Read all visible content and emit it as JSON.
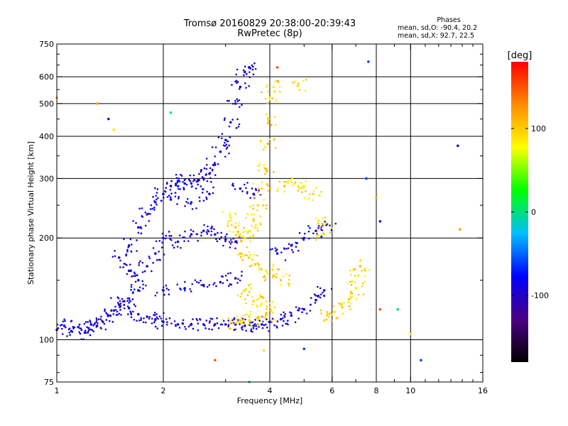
{
  "header": {
    "title_line1": "Tromsø 20160829 20:38:00-20:39:43",
    "title_line2": "RwPretec (8p)",
    "stats_heading": "Phases",
    "stats_o": "mean, sd,O: -90.4, 20.2",
    "stats_x": "mean, sd,X:  92.7, 22.5"
  },
  "chart_data": {
    "type": "scatter",
    "xlabel": "Frequency [MHz]",
    "ylabel": "Stationary phase Virtual Height [km]",
    "x_scale": "log",
    "y_scale": "log",
    "xlim": [
      1,
      16
    ],
    "ylim": [
      75,
      750
    ],
    "x_ticks": [
      1,
      2,
      4,
      6,
      8,
      10,
      16
    ],
    "x_minor_ticks": [
      3,
      5,
      7,
      9,
      11,
      12,
      13,
      14,
      15
    ],
    "y_ticks": [
      75,
      100,
      200,
      300,
      400,
      500,
      600,
      750
    ],
    "y_minor_ticks": [
      80,
      90,
      150,
      250,
      350,
      450,
      550,
      650,
      700
    ],
    "grid": true,
    "colorbar": {
      "label": "[deg]",
      "min": -180,
      "max": 180,
      "ticks": [
        -100,
        0,
        100
      ],
      "colormap": [
        "#000000",
        "#4b0082",
        "#0000ff",
        "#00bfff",
        "#00ff00",
        "#ffff00",
        "#ff8c00",
        "#ff0000"
      ]
    },
    "series": [
      {
        "role": "O-mode trace",
        "phase_mean": -90.4,
        "phase_sd": 20.2,
        "points": [
          [
            1.0,
            107
          ],
          [
            1.05,
            110
          ],
          [
            1.1,
            106
          ],
          [
            1.15,
            109
          ],
          [
            1.2,
            105
          ],
          [
            1.25,
            111
          ],
          [
            1.3,
            110
          ],
          [
            1.35,
            113
          ],
          [
            1.4,
            118
          ],
          [
            1.45,
            122
          ],
          [
            1.5,
            127
          ],
          [
            1.55,
            130
          ],
          [
            1.6,
            124
          ],
          [
            1.7,
            119
          ],
          [
            1.8,
            117
          ],
          [
            1.9,
            115
          ],
          [
            2.0,
            113
          ],
          [
            2.2,
            111
          ],
          [
            2.4,
            111
          ],
          [
            2.6,
            111
          ],
          [
            2.8,
            111
          ],
          [
            3.0,
            111
          ],
          [
            3.2,
            111
          ],
          [
            3.4,
            110
          ],
          [
            3.6,
            110
          ],
          [
            3.8,
            111
          ],
          [
            4.0,
            113
          ],
          [
            4.3,
            115
          ],
          [
            4.6,
            118
          ],
          [
            5.0,
            123
          ],
          [
            5.4,
            131
          ],
          [
            5.7,
            140
          ],
          [
            1.5,
            175
          ],
          [
            1.6,
            190
          ],
          [
            1.7,
            215
          ],
          [
            1.8,
            235
          ],
          [
            1.9,
            255
          ],
          [
            2.0,
            270
          ],
          [
            2.1,
            285
          ],
          [
            2.2,
            295
          ],
          [
            2.3,
            290
          ],
          [
            2.4,
            290
          ],
          [
            2.5,
            295
          ],
          [
            2.6,
            300
          ],
          [
            2.7,
            310
          ],
          [
            2.8,
            330
          ],
          [
            2.9,
            360
          ],
          [
            3.0,
            390
          ],
          [
            3.1,
            440
          ],
          [
            3.2,
            500
          ],
          [
            3.3,
            560
          ],
          [
            3.4,
            620
          ],
          [
            3.5,
            640
          ],
          [
            1.6,
            160
          ],
          [
            1.7,
            150
          ],
          [
            1.8,
            165
          ],
          [
            1.9,
            180
          ],
          [
            2.0,
            200
          ],
          [
            2.2,
            195
          ],
          [
            2.4,
            205
          ],
          [
            2.6,
            210
          ],
          [
            2.8,
            205
          ],
          [
            3.0,
            198
          ],
          [
            3.2,
            195
          ],
          [
            1.7,
            140
          ],
          [
            2.0,
            140
          ],
          [
            2.3,
            142
          ],
          [
            2.6,
            145
          ],
          [
            2.9,
            148
          ],
          [
            3.2,
            152
          ],
          [
            4.2,
            180
          ],
          [
            4.6,
            190
          ],
          [
            5.0,
            200
          ],
          [
            5.4,
            210
          ],
          [
            5.8,
            220
          ],
          [
            2.1,
            260
          ],
          [
            2.4,
            255
          ],
          [
            2.7,
            270
          ],
          [
            3.3,
            280
          ],
          [
            3.6,
            270
          ]
        ]
      },
      {
        "role": "X-mode trace",
        "phase_mean": 92.7,
        "phase_sd": 22.5,
        "points": [
          [
            3.1,
            230
          ],
          [
            3.2,
            215
          ],
          [
            3.3,
            205
          ],
          [
            3.4,
            200
          ],
          [
            3.5,
            210
          ],
          [
            3.6,
            225
          ],
          [
            3.7,
            250
          ],
          [
            3.8,
            280
          ],
          [
            3.9,
            320
          ],
          [
            3.95,
            380
          ],
          [
            3.97,
            450
          ],
          [
            4.0,
            520
          ],
          [
            4.1,
            560
          ],
          [
            3.3,
            180
          ],
          [
            3.5,
            175
          ],
          [
            3.7,
            168
          ],
          [
            3.9,
            160
          ],
          [
            4.1,
            155
          ],
          [
            4.3,
            150
          ],
          [
            3.1,
            112
          ],
          [
            3.3,
            113
          ],
          [
            3.5,
            114
          ],
          [
            3.7,
            116
          ],
          [
            3.9,
            118
          ],
          [
            5.8,
            118
          ],
          [
            6.1,
            121
          ],
          [
            6.4,
            125
          ],
          [
            6.7,
            132
          ],
          [
            7.0,
            142
          ],
          [
            7.1,
            155
          ],
          [
            7.2,
            165
          ],
          [
            4.4,
            285
          ],
          [
            4.7,
            290
          ],
          [
            5.0,
            285
          ],
          [
            5.3,
            270
          ],
          [
            3.4,
            140
          ],
          [
            3.6,
            130
          ],
          [
            3.8,
            128
          ],
          [
            4.0,
            125
          ],
          [
            5.5,
            225
          ],
          [
            5.7,
            205
          ],
          [
            4.8,
            565
          ]
        ]
      },
      {
        "role": "scattered echoes",
        "points": [
          [
            7.6,
            665
          ],
          [
            13.8,
            212
          ],
          [
            13.6,
            375
          ],
          [
            10.0,
            104
          ],
          [
            9.2,
            123
          ],
          [
            8.2,
            123
          ],
          [
            10.7,
            87
          ],
          [
            8.0,
            263
          ],
          [
            8.2,
            224
          ],
          [
            3.85,
            93
          ],
          [
            3.5,
            75
          ],
          [
            2.8,
            87
          ],
          [
            5.0,
            94
          ],
          [
            1.3,
            500
          ],
          [
            1.4,
            450
          ],
          [
            1.45,
            418
          ],
          [
            2.1,
            470
          ],
          [
            4.2,
            640
          ],
          [
            7.5,
            300
          ],
          [
            1.0,
            520
          ]
        ]
      }
    ]
  }
}
